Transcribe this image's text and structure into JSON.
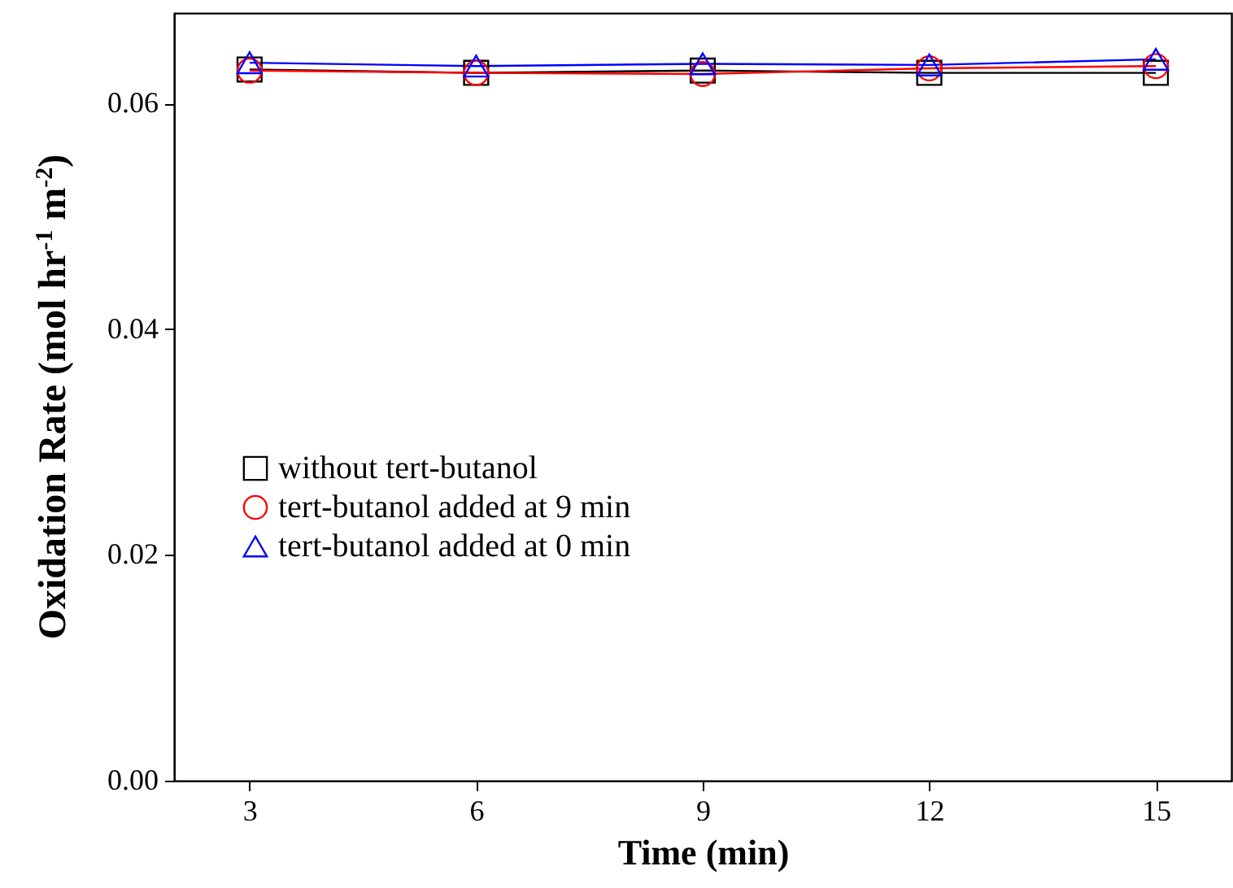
{
  "chart_data": {
    "type": "line",
    "xlabel": "Time (min)",
    "ylabel": "Oxidation Rate (mol hr$^{-1}$ m$^{-2}$)",
    "x": [
      3,
      6,
      9,
      12,
      15
    ],
    "series": [
      {
        "name": "without tert-butanol",
        "color": "#000000",
        "marker": "square",
        "values": [
          0.063,
          0.0627,
          0.0629,
          0.0627,
          0.0627
        ]
      },
      {
        "name": "tert-butanol added at 9 min",
        "color": "#ff0000",
        "marker": "circle",
        "values": [
          0.0629,
          0.0627,
          0.0626,
          0.0631,
          0.0633
        ]
      },
      {
        "name": "tert-butanol added at 0 min",
        "color": "#0000ff",
        "marker": "triangle",
        "values": [
          0.0636,
          0.0633,
          0.0635,
          0.0634,
          0.0639
        ]
      }
    ],
    "xlim": [
      2,
      16
    ],
    "xticks": [
      3,
      6,
      9,
      12,
      15
    ],
    "ylim": [
      0,
      0.068
    ],
    "yticks": [
      {
        "value": 0,
        "label": "0.00"
      },
      0.02,
      0.04,
      0.06
    ],
    "legend": "left",
    "grid": false
  }
}
